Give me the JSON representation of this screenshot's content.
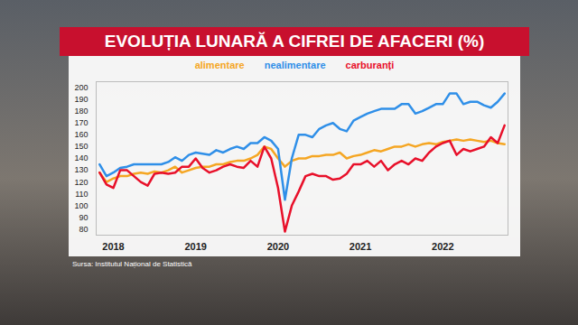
{
  "chart_data": {
    "type": "line",
    "title": "EVOLUȚIA LUNARĂ A CIFREI DE AFACERI (%)",
    "caption": "Sursa: Institutul Național de Statistică",
    "categories": [
      null,
      null,
      "2018",
      null,
      null,
      null,
      null,
      null,
      null,
      null,
      null,
      null,
      null,
      null,
      "2019",
      null,
      null,
      null,
      null,
      null,
      null,
      null,
      null,
      null,
      null,
      null,
      "2020",
      null,
      null,
      null,
      null,
      null,
      null,
      null,
      null,
      null,
      null,
      null,
      "2021",
      null,
      null,
      null,
      null,
      null,
      null,
      null,
      null,
      null,
      null,
      null,
      "2022",
      null,
      null,
      null,
      null,
      null,
      null,
      null,
      null,
      null
    ],
    "series": [
      {
        "name": "alimentare",
        "color": "#f5a623",
        "values": [
          128,
          120,
          123,
          125,
          125,
          127,
          128,
          127,
          129,
          128,
          130,
          133,
          128,
          130,
          132,
          133,
          133,
          135,
          135,
          137,
          138,
          138,
          140,
          143,
          150,
          148,
          140,
          133,
          138,
          140,
          140,
          142,
          142,
          143,
          143,
          145,
          140,
          142,
          143,
          145,
          147,
          146,
          148,
          150,
          150,
          152,
          150,
          152,
          153,
          152,
          154,
          155,
          156,
          155,
          156,
          155,
          154,
          155,
          153,
          152
        ]
      },
      {
        "name": "nealimentare",
        "color": "#2f8fe8",
        "values": [
          135,
          125,
          128,
          132,
          133,
          135,
          135,
          135,
          135,
          135,
          137,
          141,
          138,
          143,
          145,
          144,
          143,
          147,
          145,
          148,
          150,
          148,
          153,
          153,
          158,
          155,
          148,
          105,
          140,
          160,
          160,
          158,
          165,
          168,
          170,
          165,
          163,
          172,
          175,
          178,
          180,
          182,
          182,
          182,
          186,
          186,
          178,
          180,
          183,
          186,
          186,
          195,
          195,
          186,
          188,
          188,
          185,
          183,
          188,
          195
        ]
      },
      {
        "name": "carburanți",
        "color": "#e8102a",
        "values": [
          128,
          118,
          115,
          130,
          130,
          125,
          120,
          117,
          127,
          128,
          127,
          128,
          133,
          133,
          140,
          132,
          128,
          130,
          133,
          135,
          133,
          132,
          138,
          133,
          150,
          140,
          115,
          78,
          100,
          112,
          125,
          127,
          125,
          125,
          122,
          123,
          127,
          135,
          135,
          138,
          133,
          138,
          130,
          135,
          138,
          135,
          140,
          138,
          145,
          150,
          153,
          155,
          143,
          148,
          146,
          148,
          150,
          158,
          153,
          168
        ]
      }
    ],
    "ylim": [
      75,
      205
    ],
    "yticks": [
      80,
      90,
      100,
      110,
      120,
      130,
      140,
      150,
      160,
      170,
      180,
      190,
      200
    ],
    "grid": false,
    "legend": "top"
  }
}
